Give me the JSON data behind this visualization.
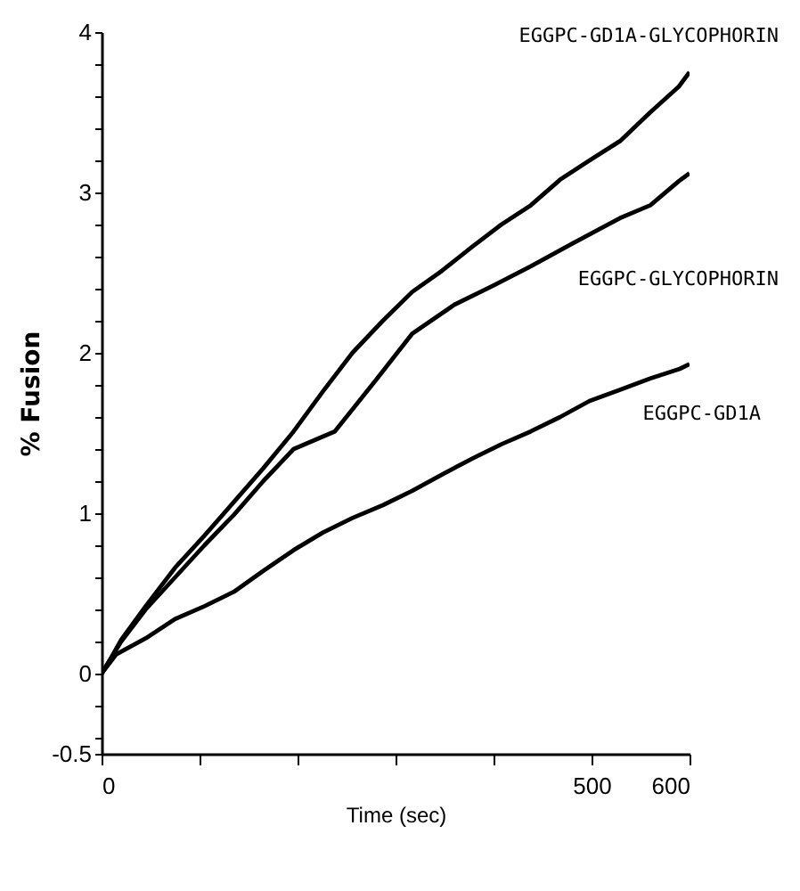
{
  "chart_data": {
    "type": "line",
    "xlabel": "Time (sec)",
    "ylabel": "% Fusion",
    "xlim": [
      0,
      600
    ],
    "ylim": [
      -0.5,
      4
    ],
    "xticks": [
      0,
      {
        "value": 100,
        "label": null
      },
      {
        "value": 200,
        "label": null
      },
      {
        "value": 300,
        "label": null
      },
      {
        "value": 400,
        "label": null
      },
      500,
      600
    ],
    "yticks": [
      -0.5,
      {
        "value": -0.4,
        "label": null
      },
      {
        "value": -0.2,
        "label": null
      },
      0,
      {
        "value": 0.2,
        "label": null
      },
      {
        "value": 0.4,
        "label": null
      },
      {
        "value": 0.6,
        "label": null
      },
      {
        "value": 0.8,
        "label": null
      },
      1,
      {
        "value": 1.2,
        "label": null
      },
      {
        "value": 1.4,
        "label": null
      },
      {
        "value": 1.6,
        "label": null
      },
      {
        "value": 1.8,
        "label": null
      },
      2,
      {
        "value": 2.2,
        "label": null
      },
      {
        "value": 2.4,
        "label": null
      },
      {
        "value": 2.6,
        "label": null
      },
      {
        "value": 2.8,
        "label": null
      },
      3,
      {
        "value": 3.2,
        "label": null
      },
      {
        "value": 3.4,
        "label": null
      },
      {
        "value": 3.6,
        "label": null
      },
      {
        "value": 3.8,
        "label": null
      },
      4
    ],
    "grid": false,
    "legend": false,
    "marker": "none",
    "line_style": "solid",
    "series": [
      {
        "name": "EGGPC-GD1A-GLYCOPHORIN",
        "color": "#000000",
        "x": [
          0,
          10,
          20,
          45,
          75,
          105,
          135,
          165,
          196,
          226,
          256,
          287,
          317,
          347,
          378,
          408,
          438,
          468,
          498,
          529,
          560,
          589,
          600
        ],
        "values": [
          0,
          0.1,
          0.21,
          0.42,
          0.66,
          0.86,
          1.07,
          1.28,
          1.51,
          1.76,
          2.0,
          2.2,
          2.38,
          2.51,
          2.66,
          2.8,
          2.92,
          3.08,
          3.2,
          3.32,
          3.5,
          3.66,
          3.75
        ]
      },
      {
        "name": "EGGPC-GLYCOPHORIN",
        "color": "#000000",
        "x": [
          0,
          10,
          20,
          45,
          75,
          105,
          135,
          165,
          196,
          238,
          280,
          317,
          360,
          400,
          438,
          480,
          529,
          560,
          589,
          600
        ],
        "values": [
          0,
          0.1,
          0.2,
          0.4,
          0.6,
          0.8,
          0.99,
          1.2,
          1.4,
          1.51,
          1.83,
          2.12,
          2.3,
          2.42,
          2.54,
          2.68,
          2.84,
          2.92,
          3.07,
          3.12
        ]
      },
      {
        "name": "EGGPC-GD1A",
        "color": "#000000",
        "x": [
          0,
          15,
          45,
          75,
          105,
          135,
          165,
          196,
          226,
          256,
          287,
          317,
          347,
          378,
          408,
          438,
          468,
          498,
          529,
          560,
          590,
          600
        ],
        "values": [
          0,
          0.12,
          0.22,
          0.34,
          0.42,
          0.51,
          0.64,
          0.77,
          0.88,
          0.97,
          1.05,
          1.14,
          1.24,
          1.34,
          1.43,
          1.51,
          1.6,
          1.7,
          1.77,
          1.84,
          1.9,
          1.93
        ]
      }
    ]
  }
}
